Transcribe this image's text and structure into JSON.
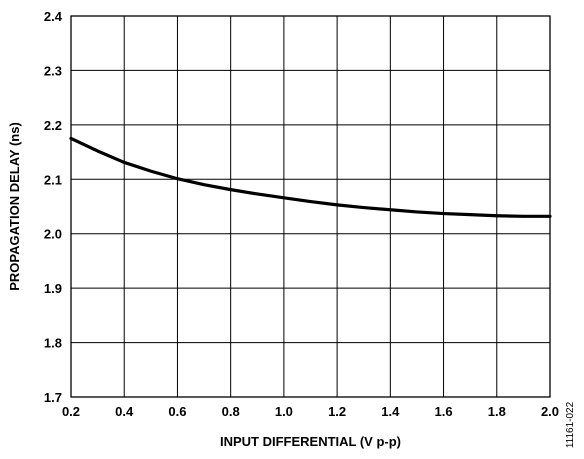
{
  "chart_data": {
    "type": "line",
    "title": "",
    "xlabel": "INPUT DIFFERENTIAL (V p-p)",
    "ylabel": "PROPAGATION DELAY (ns)",
    "xlim": [
      0.2,
      2.0
    ],
    "ylim": [
      1.7,
      2.4
    ],
    "x_ticks": [
      "0.2",
      "0.4",
      "0.6",
      "0.8",
      "1.0",
      "1.2",
      "1.4",
      "1.6",
      "1.8",
      "2.0"
    ],
    "y_ticks": [
      "1.7",
      "1.8",
      "1.9",
      "2.0",
      "2.1",
      "2.2",
      "2.3",
      "2.4"
    ],
    "grid": true,
    "legend": "none",
    "figure_id": "11161-022",
    "series": [
      {
        "color": "#000000",
        "x": [
          0.2,
          0.3,
          0.4,
          0.5,
          0.6,
          0.7,
          0.8,
          0.9,
          1.0,
          1.1,
          1.2,
          1.3,
          1.4,
          1.5,
          1.6,
          1.7,
          1.8,
          1.9,
          2.0
        ],
        "y": [
          2.175,
          2.152,
          2.131,
          2.115,
          2.101,
          2.09,
          2.081,
          2.073,
          2.066,
          2.059,
          2.053,
          2.048,
          2.044,
          2.04,
          2.037,
          2.035,
          2.033,
          2.032,
          2.032
        ]
      }
    ]
  }
}
